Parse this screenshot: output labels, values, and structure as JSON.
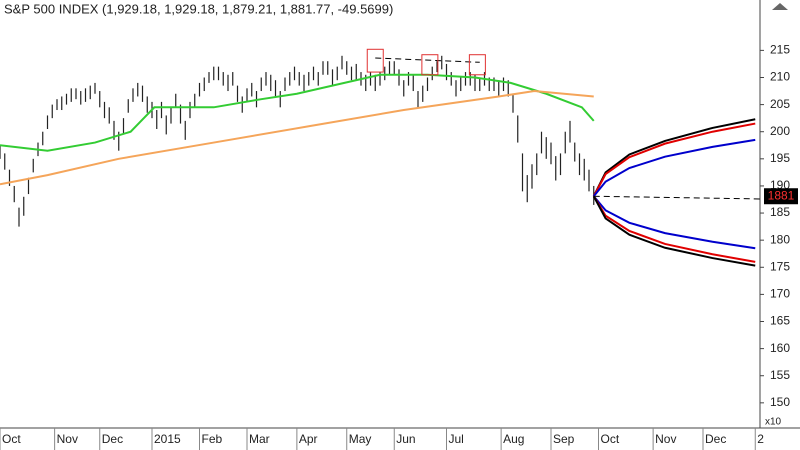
{
  "chart_data": {
    "type": "ohlc",
    "title": "S&P 500 INDEX (1,929.18, 1,929.18, 1,879.21, 1,881.77, -49.5699)",
    "scale_note": "x10",
    "xlim": [
      0,
      320
    ],
    "xticks": [
      {
        "value": 0,
        "label": "Oct"
      },
      {
        "value": 23,
        "label": "Nov"
      },
      {
        "value": 42,
        "label": "Dec"
      },
      {
        "value": 64,
        "label": "2015"
      },
      {
        "value": 84,
        "label": "Feb"
      },
      {
        "value": 104,
        "label": "Mar"
      },
      {
        "value": 125,
        "label": "Apr"
      },
      {
        "value": 146,
        "label": "May"
      },
      {
        "value": 166,
        "label": "Jun"
      },
      {
        "value": 188,
        "label": "Jul"
      },
      {
        "value": 211,
        "label": "Aug"
      },
      {
        "value": 232,
        "label": "Sep"
      },
      {
        "value": 252,
        "label": "Oct"
      },
      {
        "value": 275,
        "label": "Nov"
      },
      {
        "value": 296,
        "label": "Dec"
      },
      {
        "value": 318,
        "label": "2"
      }
    ],
    "ylim": [
      145.36,
      224.29
    ],
    "yticks": [
      150,
      155,
      160,
      165,
      170,
      175,
      180,
      185,
      190,
      195,
      200,
      205,
      210,
      215
    ],
    "bar_color": "#222222",
    "x": [
      0,
      2,
      4,
      6,
      8,
      10,
      12,
      14,
      16,
      18,
      20,
      22,
      24,
      26,
      28,
      30,
      32,
      34,
      36,
      38,
      40,
      42,
      44,
      46,
      48,
      50,
      52,
      54,
      56,
      58,
      60,
      62,
      64,
      66,
      68,
      70,
      72,
      74,
      76,
      78,
      80,
      82,
      84,
      86,
      88,
      90,
      92,
      94,
      96,
      98,
      100,
      102,
      104,
      106,
      108,
      110,
      112,
      114,
      116,
      118,
      120,
      122,
      124,
      126,
      128,
      130,
      132,
      134,
      136,
      138,
      140,
      142,
      144,
      146,
      148,
      150,
      152,
      154,
      156,
      158,
      160,
      162,
      164,
      166,
      168,
      170,
      172,
      174,
      176,
      178,
      180,
      182,
      184,
      186,
      188,
      190,
      192,
      194,
      196,
      198,
      200,
      202,
      204,
      206,
      208,
      210,
      212,
      214,
      216,
      218,
      220,
      222,
      224,
      226,
      228,
      230,
      232,
      234,
      236,
      238,
      240,
      242,
      244,
      246,
      248,
      250
    ],
    "high": [
      197.5,
      196,
      193,
      190,
      186,
      188,
      191.5,
      195,
      198,
      200,
      203,
      205,
      206,
      206.5,
      207,
      208,
      208,
      207.5,
      208,
      208.5,
      209,
      207.5,
      205.5,
      204.5,
      202,
      200,
      202.5,
      206,
      208,
      209,
      208.5,
      206.5,
      205.5,
      204,
      205.5,
      203,
      204.5,
      207,
      205,
      202,
      205.5,
      207,
      209,
      210,
      211,
      212,
      212,
      211,
      210.5,
      211,
      208.5,
      206.5,
      208,
      209,
      207.5,
      210,
      211,
      210.5,
      209.5,
      207.5,
      210,
      211,
      212,
      211,
      210.5,
      211,
      212,
      211,
      213,
      213,
      211.5,
      212,
      214,
      213,
      212,
      212.5,
      211,
      210.5,
      211,
      210.5,
      211,
      212,
      213,
      213,
      211.5,
      209.5,
      211,
      210.5,
      207.5,
      208.5,
      210,
      212,
      213,
      214,
      212.5,
      211,
      209.5,
      210,
      211,
      211,
      210.5,
      210,
      211,
      210,
      210,
      209.5,
      210,
      209.5,
      207,
      203,
      196,
      192,
      194,
      196,
      200,
      199,
      198,
      195.5,
      196,
      200,
      202,
      198,
      196,
      195,
      193,
      190
    ],
    "low": [
      195,
      193,
      190,
      187,
      182.5,
      184.5,
      188.5,
      192.5,
      195.5,
      197.5,
      200.5,
      202.5,
      204,
      204,
      205,
      205.5,
      206,
      205,
      205.5,
      206,
      207,
      204.5,
      202.5,
      201.5,
      198.5,
      196.5,
      199.5,
      203.5,
      205.5,
      206.5,
      205.5,
      203.5,
      202.5,
      200.5,
      202.5,
      199.5,
      201.5,
      204.5,
      201.5,
      198.5,
      202.5,
      204.5,
      206.5,
      207.5,
      209,
      209.5,
      209.5,
      208.5,
      207.5,
      208.5,
      205.5,
      203.5,
      205.5,
      206.5,
      204.5,
      207.5,
      208.5,
      207.5,
      206.5,
      204.5,
      207.5,
      208.5,
      209.5,
      208.5,
      207.5,
      208.5,
      209.5,
      208.5,
      210.5,
      210.5,
      208.5,
      209.5,
      211.5,
      210.5,
      209.5,
      209.5,
      208.5,
      207.5,
      208.5,
      207.5,
      208.5,
      209.5,
      210.5,
      210.5,
      208.5,
      206.5,
      208.5,
      207.5,
      204.5,
      205.5,
      207.5,
      209.5,
      211,
      211.5,
      209.5,
      208.5,
      206.5,
      207.5,
      208.5,
      208.5,
      207.5,
      207.5,
      208.5,
      207.5,
      207.5,
      206.5,
      207.5,
      206.5,
      203.5,
      198,
      189,
      187,
      189.5,
      192,
      196,
      195,
      194,
      191,
      192,
      196,
      198,
      194.5,
      192,
      191,
      189,
      186.5
    ],
    "series": [
      {
        "color": "#33cc33",
        "x": [
          0,
          20,
          40,
          55,
          65,
          90,
          110,
          125,
          145,
          160,
          180,
          200,
          215,
          230,
          245,
          250
        ],
        "values": [
          197.5,
          196.5,
          198,
          200,
          204.5,
          204.5,
          206,
          207,
          209,
          210.5,
          210.5,
          210,
          209,
          207,
          204.5,
          202
        ]
      },
      {
        "color": "#f5a55a",
        "x": [
          0,
          20,
          50,
          90,
          130,
          170,
          210,
          225,
          250
        ],
        "values": [
          190.3,
          192,
          195,
          198,
          201,
          204,
          206.5,
          207.5,
          206.5
        ]
      },
      {
        "color": "#000000",
        "x": [
          250,
          255,
          265,
          280,
          300,
          318
        ],
        "values": [
          188.1,
          192.5,
          195.8,
          198.3,
          200.7,
          202.3
        ]
      },
      {
        "color": "#e00000",
        "x": [
          250,
          255,
          265,
          280,
          300,
          318
        ],
        "values": [
          188.1,
          192.2,
          195.3,
          197.8,
          200,
          201.5
        ]
      },
      {
        "color": "#0000cc",
        "x": [
          250,
          255,
          265,
          280,
          300,
          318
        ],
        "values": [
          188.1,
          190.8,
          193.3,
          195.4,
          197.2,
          198.5
        ]
      },
      {
        "color": "#0000cc",
        "x": [
          250,
          255,
          265,
          280,
          300,
          318
        ],
        "values": [
          188.1,
          185.5,
          183.2,
          181.3,
          179.7,
          178.5
        ]
      },
      {
        "color": "#e00000",
        "x": [
          250,
          255,
          265,
          280,
          300,
          318
        ],
        "values": [
          188.1,
          184.5,
          181.7,
          179.3,
          177.4,
          176
        ]
      },
      {
        "color": "#000000",
        "x": [
          250,
          255,
          265,
          280,
          300,
          318
        ],
        "values": [
          188.1,
          184,
          181,
          178.6,
          176.7,
          175.3
        ]
      },
      {
        "color": "#000000",
        "dashed": true,
        "x": [
          250,
          320
        ],
        "values": [
          188.1,
          187.6
        ]
      },
      {
        "color": "#000000",
        "dashed": true,
        "x": [
          158,
          202
        ],
        "values": [
          213.6,
          212.8
        ]
      }
    ],
    "highlight_boxes": [
      {
        "x": 158,
        "low": 211,
        "high": 215.2
      },
      {
        "x": 181,
        "low": 210.5,
        "high": 214.2
      },
      {
        "x": 201,
        "low": 210.5,
        "high": 214.2
      }
    ],
    "box_color": "#e03030",
    "last_value": 188.1,
    "last_label": "1881"
  }
}
